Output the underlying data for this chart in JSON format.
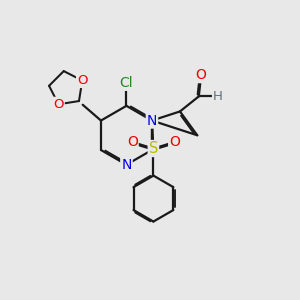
{
  "bg_color": "#e8e8e8",
  "bond_color": "#1a1a1a",
  "bond_width": 1.6,
  "atom_colors": {
    "C": "#1a1a1a",
    "N": "#0000ee",
    "O": "#ee0000",
    "S": "#bbbb00",
    "Cl": "#228822",
    "H": "#607080"
  },
  "font_size": 9.5,
  "fig_size": [
    3.0,
    3.0
  ],
  "dpi": 100
}
